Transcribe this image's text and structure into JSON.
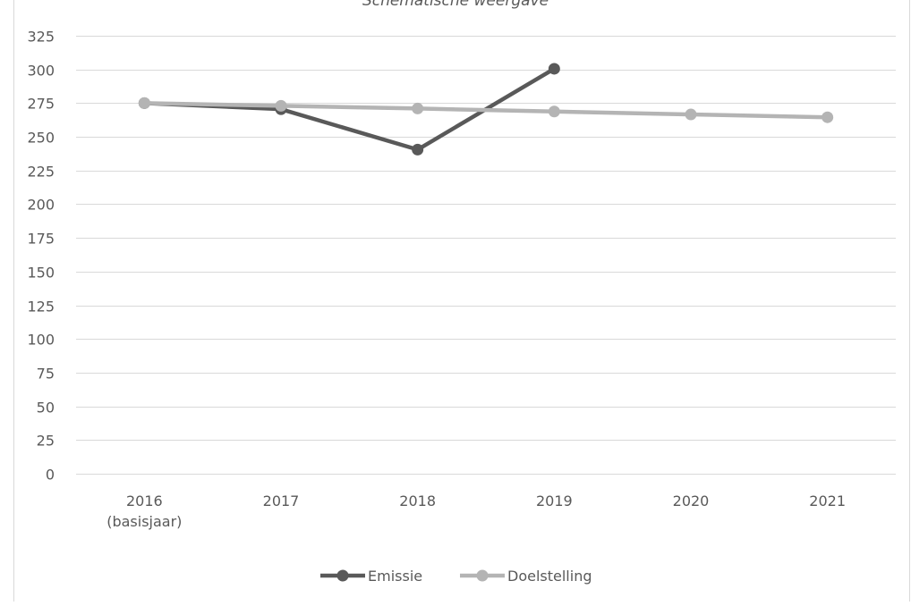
{
  "chart_data": {
    "type": "line",
    "title": "Schematische weergave",
    "categories": [
      [
        "2016",
        "(basisjaar)"
      ],
      [
        "2017"
      ],
      [
        "2018"
      ],
      [
        "2019"
      ],
      [
        "2020"
      ],
      [
        "2021"
      ]
    ],
    "ylim": [
      0,
      325
    ],
    "yticks": [
      0,
      25,
      50,
      75,
      100,
      125,
      150,
      175,
      200,
      225,
      250,
      275,
      300,
      325
    ],
    "grid": true,
    "legend_position": "bottom",
    "series": [
      {
        "name": "Emissie",
        "color": "#595959",
        "values": [
          275,
          270.5,
          240.5,
          300.5,
          null,
          null
        ]
      },
      {
        "name": "Doelstelling",
        "color": "#b4b4b4",
        "values": [
          275,
          273,
          271,
          268.8,
          266.6,
          264.5
        ]
      }
    ]
  }
}
